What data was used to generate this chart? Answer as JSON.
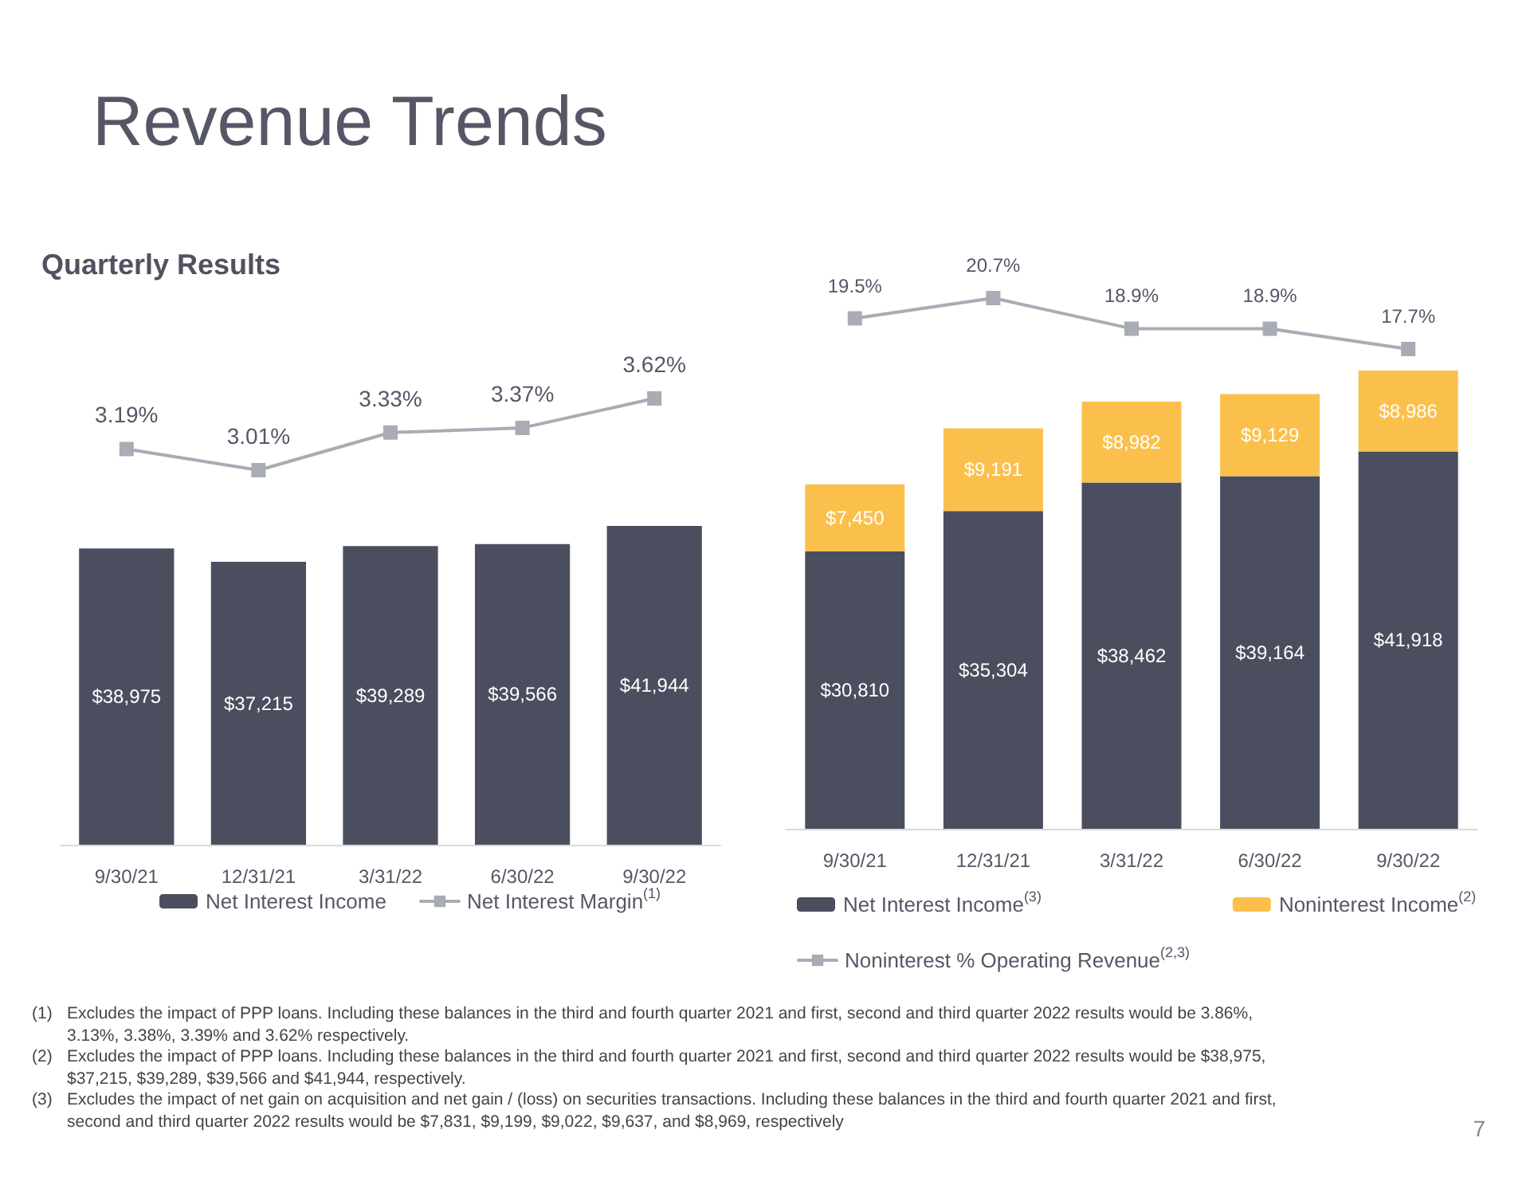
{
  "chart_data": [
    {
      "type": "line",
      "title": "Revenue Trends",
      "subtitle": "Quarterly Results",
      "categories": [
        null,
        null,
        null,
        null,
        null
      ],
      "series": [
        {
          "name": "Net Interest Margin$^{(1)}$",
          "color": "#a9abb5",
          "values": [
            3.19,
            3.01,
            3.33,
            3.37,
            3.62
          ],
          "value_labels": [
            "3.19%",
            "3.01%",
            "3.33%",
            "3.37%",
            "3.62%"
          ]
        }
      ],
      "tick_labels": false,
      "grid": false,
      "legend": "bottom",
      "marker": "square",
      "line_style": "solid",
      "annotations": [
        "(1)\tExcludes the impact of PPP loans.  Including these balances in the  third and fourth quarter 2021 and first, second and third quarter 2022 results would be 3.86%, 3.13%, 3.38%, 3.39% and 3.62% respectively.",
        "(2)\tExcludes the impact of PPP loans.  Including these balances in the  third and fourth quarter 2021 and first, second and third quarter 2022 results would be $38,975, $37,215, $39,289, $39,566 and $41,944, respectively.",
        "(3)\tExcludes the impact of net gain on acquisition and net gain / (loss) on securities transactions. Including these balances in the  third and fourth quarter 2021 and first, second and third quarter 2022 results would be $7,831, $9,199, $9,022, $9,637, and $8,969, respectively",
        "7"
      ]
    },
    {
      "type": "bar",
      "categories": [
        "9/30/21",
        "12/31/21",
        "3/31/22",
        "6/30/22",
        "9/30/22"
      ],
      "series": [
        {
          "name": "Net Interest Income",
          "color": "#4b4e5f",
          "values": [
            38975,
            37215,
            39289,
            39566,
            41944
          ],
          "value_labels": [
            "$38,975",
            "$37,215",
            "$39,289",
            "$39,566",
            "$41,944"
          ]
        }
      ],
      "tick_labels": "x",
      "grid": false,
      "legend": "bottom"
    },
    {
      "type": "line",
      "categories": [
        null,
        null,
        null,
        null,
        null
      ],
      "series": [
        {
          "name": "Noninterest % Operating Revenue$^{(2,3)}$",
          "color": "#a9abb5",
          "values": [
            19.5,
            20.7,
            18.9,
            18.9,
            17.7
          ],
          "value_labels": [
            "19.5%",
            "20.7%",
            "18.9%",
            "18.9%",
            "17.7%"
          ]
        }
      ],
      "tick_labels": false,
      "grid": false,
      "legend": "bottom",
      "marker": "square",
      "line_style": "solid"
    },
    {
      "type": "bar",
      "stacked": true,
      "categories": [
        "9/30/21",
        "12/31/21",
        "3/31/22",
        "6/30/22",
        "9/30/22"
      ],
      "series": [
        {
          "name": "Net Interest Income$^{(3)}$",
          "color": "#4b4e5f",
          "values": [
            30810,
            35304,
            38462,
            39164,
            41918
          ],
          "value_labels": [
            "$30,810",
            "$35,304",
            "$38,462",
            "$39,164",
            "$41,918"
          ]
        },
        {
          "name": "Noninterest Income$^{(2)}$",
          "color": "#fbc04c",
          "values": [
            7450,
            9191,
            8982,
            9129,
            8986
          ],
          "value_labels": [
            "$7,450",
            "$9,191",
            "$8,982",
            "$9,129",
            "$8,986"
          ]
        }
      ],
      "tick_labels": "x",
      "grid": false,
      "legend": "bottom"
    }
  ]
}
